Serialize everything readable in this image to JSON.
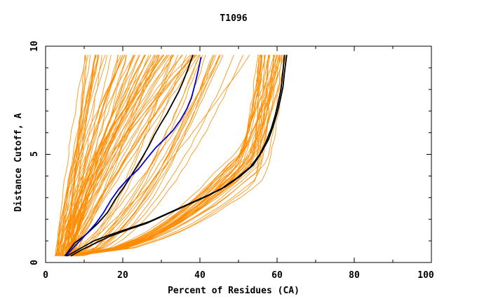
{
  "chart_data": {
    "type": "line",
    "title": "T1096",
    "xlabel": "Percent of Residues (CA)",
    "ylabel": "Distance Cutoff, A",
    "xlim": [
      0,
      100
    ],
    "ylim": [
      0,
      10
    ],
    "x_ticks": [
      "0",
      "20",
      "40",
      "60",
      "80",
      "100"
    ],
    "y_ticks": [
      "0",
      "5",
      "10"
    ],
    "grid": false,
    "legend": "none",
    "colors": {
      "bundle": "#ff8c00",
      "highlight_black": "#000000",
      "highlight_blue": "#0000cc"
    },
    "bundle_description_count": 120,
    "highlighted_series": [
      {
        "color": "#000000",
        "x": [
          5.0,
          7.5,
          10.5,
          13.5,
          16.0,
          18.0,
          20.0,
          21.8,
          23.5,
          25.2,
          26.8,
          28.2,
          29.8,
          31.5,
          33.0,
          34.5,
          35.7,
          36.8,
          37.6,
          38.2
        ],
        "y": [
          0.3,
          0.9,
          1.3,
          1.8,
          2.3,
          2.9,
          3.4,
          3.9,
          4.4,
          4.9,
          5.4,
          5.9,
          6.4,
          6.9,
          7.4,
          7.9,
          8.4,
          8.9,
          9.3,
          9.6
        ]
      },
      {
        "color": "#0000cc",
        "x": [
          5.2,
          7.8,
          10.5,
          13.0,
          15.0,
          17.0,
          19.0,
          21.5,
          24.0,
          26.2,
          28.5,
          30.8,
          33.0,
          35.0,
          36.6,
          37.8,
          38.8,
          39.6,
          40.3
        ],
        "y": [
          0.3,
          0.8,
          1.3,
          1.8,
          2.3,
          2.9,
          3.4,
          3.9,
          4.3,
          4.8,
          5.3,
          5.7,
          6.1,
          6.6,
          7.1,
          7.6,
          8.3,
          8.9,
          9.5
        ]
      },
      {
        "color": "#000000",
        "x": [
          6.5,
          9.5,
          13.0,
          16.5,
          21.0,
          26.0,
          31.0,
          36.0,
          41.0,
          45.5,
          49.5,
          53.0,
          55.5,
          57.2,
          58.5,
          59.5,
          60.3,
          61.0,
          61.5,
          61.9
        ],
        "y": [
          0.3,
          0.6,
          0.9,
          1.2,
          1.5,
          1.8,
          2.2,
          2.6,
          3.0,
          3.4,
          3.9,
          4.4,
          5.0,
          5.6,
          6.2,
          6.8,
          7.4,
          8.0,
          8.8,
          9.6
        ]
      },
      {
        "color": "#000000",
        "x": [
          5.5,
          8.5,
          12.5,
          17.0,
          22.0,
          27.0,
          32.0,
          37.0,
          42.0,
          46.5,
          50.5,
          53.8,
          56.0,
          57.8,
          59.0,
          60.0,
          60.8,
          61.5,
          62.0,
          62.5
        ],
        "y": [
          0.3,
          0.6,
          1.0,
          1.3,
          1.6,
          1.9,
          2.3,
          2.7,
          3.1,
          3.5,
          4.0,
          4.5,
          5.1,
          5.7,
          6.3,
          6.9,
          7.5,
          8.1,
          8.9,
          9.6
        ]
      }
    ]
  }
}
